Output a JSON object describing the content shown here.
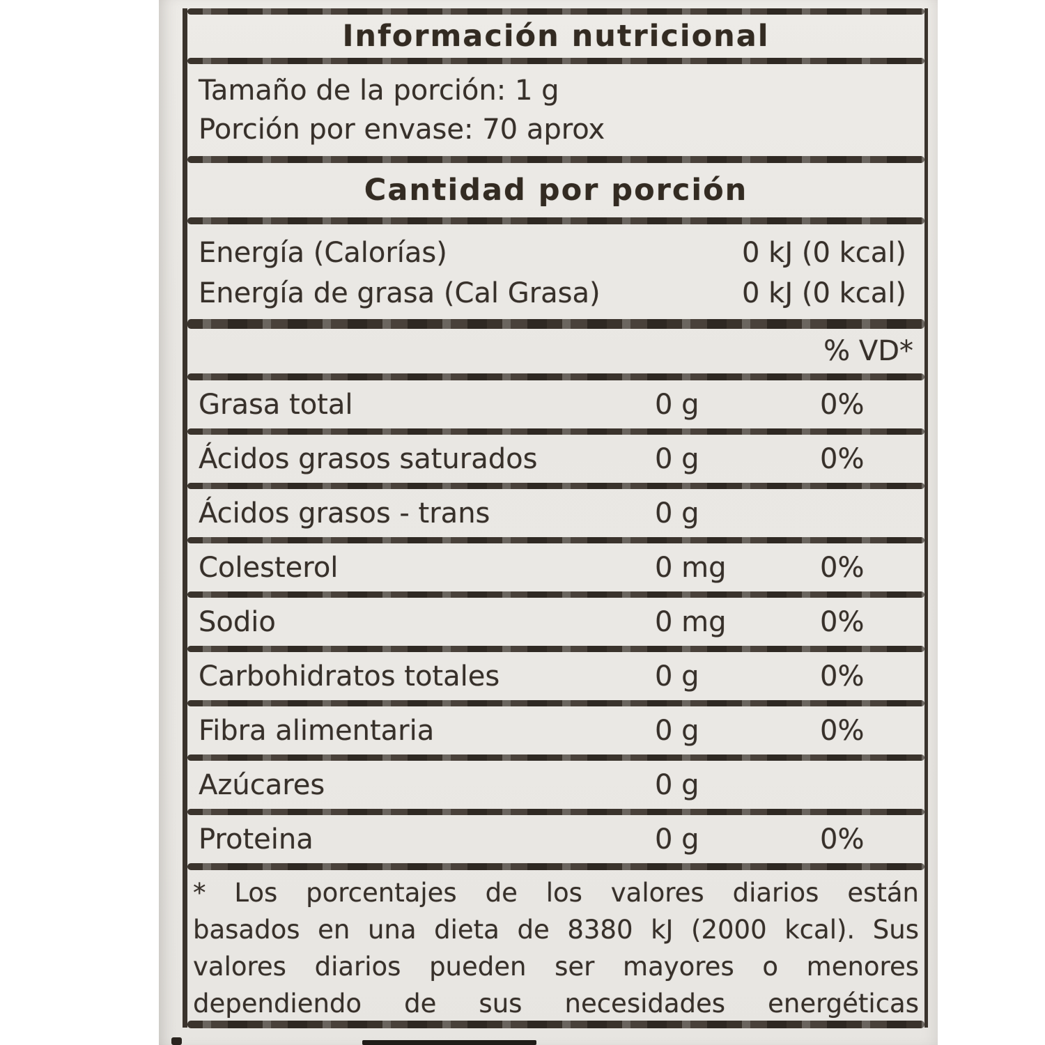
{
  "colors": {
    "paper": "#eae8e4",
    "ink": "#37302a"
  },
  "nutrition": {
    "title": "Información nutricional",
    "serving": {
      "size_label": "Tamaño de la porción:",
      "size_value": "1 g",
      "per_container_label": "Porción por envase:",
      "per_container_value": "70 aprox"
    },
    "amount_heading": "Cantidad por porción",
    "energy_rows": [
      {
        "label": "Energía (Calorías)",
        "value": "0 kJ (0 kcal)"
      },
      {
        "label": "Energía de grasa (Cal Grasa)",
        "value": "0 kJ (0 kcal)"
      }
    ],
    "dv_header": "% VD*",
    "nutrients": [
      {
        "label": "Grasa total",
        "amount": "0 g",
        "dv": "0%"
      },
      {
        "label": "Ácidos grasos saturados",
        "amount": "0 g",
        "dv": "0%"
      },
      {
        "label": "Ácidos grasos - trans",
        "amount": "0 g",
        "dv": ""
      },
      {
        "label": "Colesterol",
        "amount": "0 mg",
        "dv": "0%"
      },
      {
        "label": "Sodio",
        "amount": "0 mg",
        "dv": "0%"
      },
      {
        "label": "Carbohidratos totales",
        "amount": "0 g",
        "dv": "0%"
      },
      {
        "label": "Fibra alimentaria",
        "amount": "0 g",
        "dv": "0%"
      },
      {
        "label": "Azúcares",
        "amount": "0 g",
        "dv": ""
      },
      {
        "label": "Proteina",
        "amount": "0 g",
        "dv": "0%"
      }
    ],
    "footnote_lines": [
      "* Los porcentajes de los valores diarios están",
      "basados en una dieta de 8380 kJ (2000 kcal). Sus",
      "valores diarios pueden ser mayores o menores",
      "dependiendo de sus necesidades energéticas"
    ]
  }
}
